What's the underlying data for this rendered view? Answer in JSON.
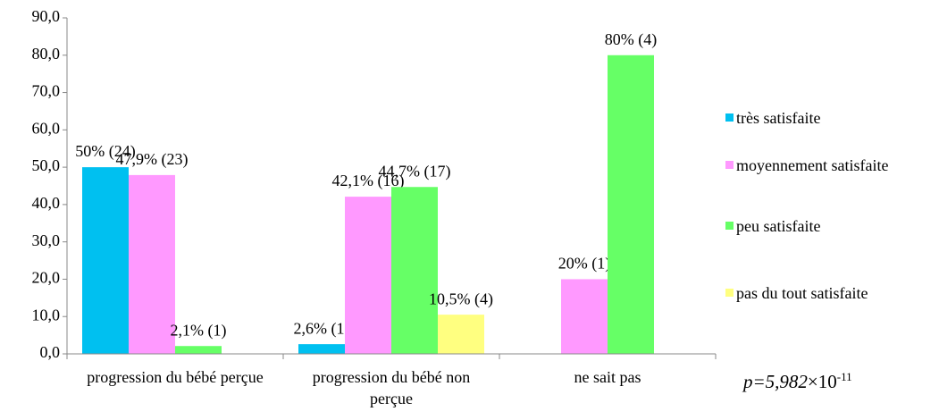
{
  "chart_data": {
    "type": "bar",
    "categories": [
      "progression du bébé perçue",
      "progression du bébé non perçue",
      "ne sait pas"
    ],
    "series": [
      {
        "name": "très satisfaite",
        "color": "#00c0f0",
        "values": [
          50,
          2.6,
          null
        ],
        "value_labels": [
          "50% (24)",
          "2,6% (1)",
          null
        ]
      },
      {
        "name": "moyennement satisfaite",
        "color": "#ff99ff",
        "values": [
          47.9,
          42.1,
          20
        ],
        "value_labels": [
          "47,9% (23)",
          "42,1% (16)",
          "20% (1)"
        ]
      },
      {
        "name": "peu satisfaite",
        "color": "#66ff66",
        "values": [
          2.1,
          44.7,
          80
        ],
        "value_labels": [
          "2,1% (1)",
          "44,7% (17)",
          "80% (4)"
        ]
      },
      {
        "name": "pas du tout satisfaite",
        "color": "#ffff80",
        "values": [
          null,
          10.5,
          null
        ],
        "value_labels": [
          null,
          "10,5% (4)",
          null
        ]
      }
    ],
    "ylim": [
      0,
      90
    ],
    "yticks": [
      {
        "value": 0,
        "label": "0,0"
      },
      {
        "value": 10,
        "label": "10,0"
      },
      {
        "value": 20,
        "label": "20,0"
      },
      {
        "value": 30,
        "label": "30,0"
      },
      {
        "value": 40,
        "label": "40,0"
      },
      {
        "value": 50,
        "label": "50,0"
      },
      {
        "value": 60,
        "label": "60,0"
      },
      {
        "value": 70,
        "label": "70,0"
      },
      {
        "value": 80,
        "label": "80,0"
      },
      {
        "value": 90,
        "label": "90,0"
      }
    ],
    "legend": "right",
    "annotation": {
      "text": "p=5,982",
      "times": "×10",
      "exponent": "-11"
    }
  }
}
